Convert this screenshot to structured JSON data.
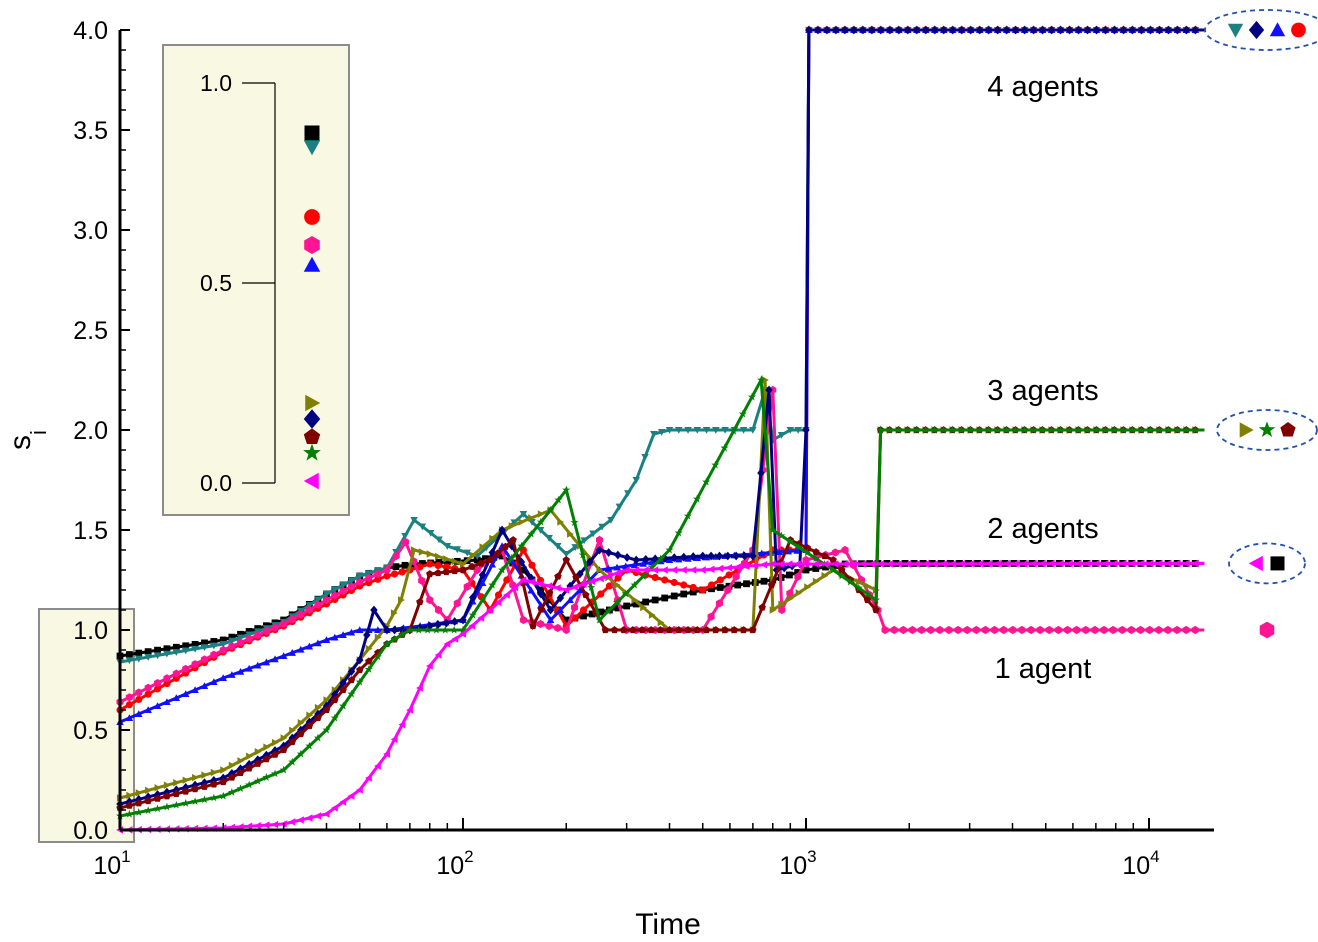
{
  "chart_data": {
    "type": "line",
    "title": "",
    "xlabel": "Time",
    "ylabel": "s",
    "ylabel_subscript": "i",
    "x_scale": "log",
    "xlim": [
      10,
      15000
    ],
    "ylim": [
      0,
      4
    ],
    "x_ticks": [
      10,
      100,
      1000,
      10000
    ],
    "x_tick_labels": [
      {
        "base": "10",
        "exp": "1"
      },
      {
        "base": "10",
        "exp": "2"
      },
      {
        "base": "10",
        "exp": "3"
      },
      {
        "base": "10",
        "exp": "4"
      }
    ],
    "y_ticks": [
      "0.0",
      "0.5",
      "1.0",
      "1.5",
      "2.0",
      "2.5",
      "3.0",
      "3.5",
      "4.0"
    ],
    "grid": false,
    "series": [
      {
        "marker": "square",
        "color": "#000000",
        "final": 1.333,
        "points": [
          [
            10,
            0.87
          ],
          [
            20,
            0.95
          ],
          [
            30,
            1.05
          ],
          [
            40,
            1.18
          ],
          [
            50,
            1.27
          ],
          [
            60,
            1.31
          ],
          [
            72,
            1.33
          ],
          [
            90,
            1.34
          ],
          [
            110,
            1.35
          ],
          [
            130,
            1.37
          ],
          [
            150,
            1.3
          ],
          [
            200,
            1.05
          ],
          [
            300,
            1.12
          ],
          [
            500,
            1.2
          ],
          [
            800,
            1.25
          ],
          [
            1000,
            1.3
          ],
          [
            1300,
            1.33
          ],
          [
            1620,
            1.333
          ],
          [
            14500,
            1.333
          ]
        ]
      },
      {
        "marker": "triangle-down",
        "color": "#1A8080",
        "final": 4,
        "points": [
          [
            10,
            0.84
          ],
          [
            20,
            0.93
          ],
          [
            30,
            1.04
          ],
          [
            40,
            1.18
          ],
          [
            50,
            1.27
          ],
          [
            60,
            1.31
          ],
          [
            72,
            1.55
          ],
          [
            90,
            1.42
          ],
          [
            110,
            1.37
          ],
          [
            150,
            1.58
          ],
          [
            200,
            1.38
          ],
          [
            270,
            1.55
          ],
          [
            320,
            1.75
          ],
          [
            360,
            1.98
          ],
          [
            400,
            2.0
          ],
          [
            700,
            2.0
          ],
          [
            760,
            2.2
          ],
          [
            800,
            1.95
          ],
          [
            900,
            2.0
          ],
          [
            1000,
            2.0
          ],
          [
            1020,
            4.0
          ],
          [
            14500,
            4.0
          ]
        ]
      },
      {
        "marker": "circle",
        "color": "#FF0000",
        "final": 4,
        "points": [
          [
            10,
            0.6
          ],
          [
            20,
            0.89
          ],
          [
            30,
            1.02
          ],
          [
            40,
            1.13
          ],
          [
            50,
            1.22
          ],
          [
            60,
            1.27
          ],
          [
            70,
            1.3
          ],
          [
            80,
            1.33
          ],
          [
            100,
            1.3
          ],
          [
            120,
            1.1
          ],
          [
            150,
            1.4
          ],
          [
            200,
            1.02
          ],
          [
            300,
            1.3
          ],
          [
            500,
            1.2
          ],
          [
            800,
            1.4
          ],
          [
            1000,
            1.4
          ],
          [
            1020,
            4.0
          ],
          [
            14500,
            4.0
          ]
        ]
      },
      {
        "marker": "hexagon",
        "color": "#FF1493",
        "final": 1,
        "points": [
          [
            10,
            0.64
          ],
          [
            20,
            0.9
          ],
          [
            30,
            1.03
          ],
          [
            40,
            1.15
          ],
          [
            50,
            1.24
          ],
          [
            60,
            1.3
          ],
          [
            68,
            1.44
          ],
          [
            80,
            1.15
          ],
          [
            90,
            1.05
          ],
          [
            110,
            1.3
          ],
          [
            130,
            1.4
          ],
          [
            150,
            1.05
          ],
          [
            200,
            1.0
          ],
          [
            250,
            1.45
          ],
          [
            300,
            1.0
          ],
          [
            500,
            1.0
          ],
          [
            700,
            1.4
          ],
          [
            800,
            2.2
          ],
          [
            850,
            1.1
          ],
          [
            1000,
            1.35
          ],
          [
            1300,
            1.4
          ],
          [
            1620,
            1.1
          ],
          [
            1700,
            1.0
          ],
          [
            14500,
            1.0
          ]
        ]
      },
      {
        "marker": "triangle-up",
        "color": "#1010FF",
        "final": 4,
        "points": [
          [
            10,
            0.54
          ],
          [
            20,
            0.76
          ],
          [
            30,
            0.87
          ],
          [
            40,
            0.95
          ],
          [
            50,
            1.0
          ],
          [
            60,
            1.0
          ],
          [
            75,
            1.02
          ],
          [
            100,
            1.05
          ],
          [
            130,
            1.42
          ],
          [
            180,
            1.05
          ],
          [
            250,
            1.3
          ],
          [
            400,
            1.35
          ],
          [
            700,
            1.38
          ],
          [
            1000,
            1.4
          ],
          [
            1020,
            4.0
          ],
          [
            14500,
            4.0
          ]
        ]
      },
      {
        "marker": "triangle-right",
        "color": "#808000",
        "final": 2,
        "points": [
          [
            10,
            0.16
          ],
          [
            20,
            0.3
          ],
          [
            30,
            0.46
          ],
          [
            40,
            0.65
          ],
          [
            50,
            0.85
          ],
          [
            60,
            1.02
          ],
          [
            66,
            1.15
          ],
          [
            72,
            1.4
          ],
          [
            80,
            1.38
          ],
          [
            100,
            1.33
          ],
          [
            130,
            1.5
          ],
          [
            180,
            1.6
          ],
          [
            250,
            1.3
          ],
          [
            400,
            1.0
          ],
          [
            700,
            1.0
          ],
          [
            760,
            2.25
          ],
          [
            800,
            1.1
          ],
          [
            1200,
            1.3
          ],
          [
            1600,
            1.2
          ],
          [
            1650,
            2.0
          ],
          [
            14500,
            2.0
          ]
        ]
      },
      {
        "marker": "diamond",
        "color": "#000080",
        "final": 4,
        "points": [
          [
            10,
            0.13
          ],
          [
            20,
            0.26
          ],
          [
            30,
            0.42
          ],
          [
            40,
            0.62
          ],
          [
            50,
            0.85
          ],
          [
            55,
            1.1
          ],
          [
            60,
            1.0
          ],
          [
            70,
            1.0
          ],
          [
            80,
            1.02
          ],
          [
            100,
            1.05
          ],
          [
            130,
            1.5
          ],
          [
            180,
            1.1
          ],
          [
            250,
            1.4
          ],
          [
            320,
            1.35
          ],
          [
            500,
            1.37
          ],
          [
            700,
            1.37
          ],
          [
            780,
            2.2
          ],
          [
            820,
            1.3
          ],
          [
            960,
            1.33
          ],
          [
            1000,
            2.0
          ],
          [
            1020,
            4.0
          ],
          [
            14500,
            4.0
          ]
        ]
      },
      {
        "marker": "pentagon",
        "color": "#800000",
        "final": 2,
        "points": [
          [
            10,
            0.11
          ],
          [
            20,
            0.24
          ],
          [
            30,
            0.4
          ],
          [
            40,
            0.6
          ],
          [
            50,
            0.8
          ],
          [
            60,
            0.93
          ],
          [
            70,
            1.0
          ],
          [
            80,
            1.28
          ],
          [
            100,
            1.3
          ],
          [
            120,
            1.35
          ],
          [
            140,
            1.45
          ],
          [
            160,
            1.02
          ],
          [
            200,
            1.35
          ],
          [
            260,
            1.0
          ],
          [
            400,
            1.0
          ],
          [
            700,
            1.0
          ],
          [
            900,
            1.45
          ],
          [
            1200,
            1.35
          ],
          [
            1600,
            1.1
          ],
          [
            1650,
            2.0
          ],
          [
            14500,
            2.0
          ]
        ]
      },
      {
        "marker": "star",
        "color": "#008000",
        "final": 2,
        "points": [
          [
            10,
            0.07
          ],
          [
            20,
            0.17
          ],
          [
            30,
            0.3
          ],
          [
            40,
            0.5
          ],
          [
            50,
            0.74
          ],
          [
            60,
            0.93
          ],
          [
            70,
            1.0
          ],
          [
            100,
            1.0
          ],
          [
            130,
            1.3
          ],
          [
            180,
            1.6
          ],
          [
            200,
            1.7
          ],
          [
            250,
            1.05
          ],
          [
            400,
            1.4
          ],
          [
            740,
            2.25
          ],
          [
            800,
            1.5
          ],
          [
            1200,
            1.3
          ],
          [
            1600,
            1.15
          ],
          [
            1650,
            2.0
          ],
          [
            14500,
            2.0
          ]
        ]
      },
      {
        "marker": "triangle-left",
        "color": "#FF00FF",
        "final": 1.333,
        "points": [
          [
            10,
            0.0
          ],
          [
            20,
            0.01
          ],
          [
            30,
            0.03
          ],
          [
            40,
            0.08
          ],
          [
            50,
            0.2
          ],
          [
            60,
            0.38
          ],
          [
            70,
            0.6
          ],
          [
            80,
            0.82
          ],
          [
            90,
            0.93
          ],
          [
            100,
            0.98
          ],
          [
            120,
            1.1
          ],
          [
            150,
            1.25
          ],
          [
            200,
            1.2
          ],
          [
            300,
            1.3
          ],
          [
            500,
            1.3
          ],
          [
            800,
            1.33
          ],
          [
            1000,
            1.33
          ],
          [
            1300,
            1.33
          ],
          [
            14500,
            1.333
          ]
        ]
      }
    ],
    "annotations": [
      {
        "text": "4 agents",
        "y": 3.72
      },
      {
        "text": "3 agents",
        "y": 2.2
      },
      {
        "text": "2 agents",
        "y": 1.51
      },
      {
        "text": "1 agent",
        "y": 0.81
      }
    ],
    "inset": {
      "ylim": [
        0,
        1
      ],
      "y_ticks": [
        "0.0",
        "0.5",
        "1.0"
      ],
      "values": [
        {
          "marker": "square",
          "color": "#000000",
          "value": 0.875
        },
        {
          "marker": "triangle-down",
          "color": "#1A8080",
          "value": 0.84
        },
        {
          "marker": "circle",
          "color": "#FF0000",
          "value": 0.665
        },
        {
          "marker": "hexagon",
          "color": "#FF1493",
          "value": 0.595
        },
        {
          "marker": "triangle-up",
          "color": "#1010FF",
          "value": 0.545
        },
        {
          "marker": "triangle-right",
          "color": "#808000",
          "value": 0.2
        },
        {
          "marker": "diamond",
          "color": "#000080",
          "value": 0.16
        },
        {
          "marker": "pentagon",
          "color": "#800000",
          "value": 0.115
        },
        {
          "marker": "star",
          "color": "#008000",
          "value": 0.075
        },
        {
          "marker": "triangle-left",
          "color": "#FF00FF",
          "value": 0.005
        }
      ]
    },
    "final_groups": [
      {
        "value": 4.0,
        "markers": [
          {
            "marker": "triangle-down",
            "color": "#1A8080"
          },
          {
            "marker": "diamond",
            "color": "#000080"
          },
          {
            "marker": "triangle-up",
            "color": "#1010FF"
          },
          {
            "marker": "circle",
            "color": "#FF0000"
          }
        ]
      },
      {
        "value": 2.0,
        "markers": [
          {
            "marker": "triangle-right",
            "color": "#808000"
          },
          {
            "marker": "star",
            "color": "#008000"
          },
          {
            "marker": "pentagon",
            "color": "#800000"
          }
        ]
      },
      {
        "value": 1.333,
        "markers": [
          {
            "marker": "triangle-left",
            "color": "#FF00FF"
          },
          {
            "marker": "square",
            "color": "#000000"
          }
        ]
      },
      {
        "value": 1.0,
        "markers": [
          {
            "marker": "hexagon",
            "color": "#FF1493"
          }
        ]
      }
    ]
  }
}
